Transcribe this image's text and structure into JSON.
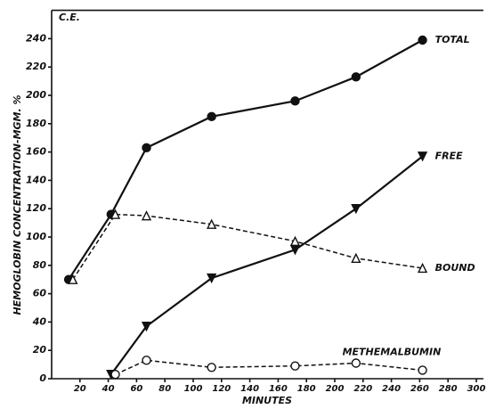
{
  "chart_data": {
    "type": "line",
    "annotation": "C.E.",
    "y_label": "HEMOGLOBIN CONCENTRATION-MGM. %",
    "x_label": "MINUTES",
    "xlim": [
      0,
      305
    ],
    "ylim": [
      0,
      260
    ],
    "xticks": [
      20,
      40,
      60,
      80,
      100,
      120,
      140,
      160,
      180,
      200,
      220,
      240,
      260,
      280,
      300
    ],
    "yticks": [
      0,
      20,
      40,
      60,
      80,
      100,
      120,
      140,
      160,
      180,
      200,
      220,
      240
    ],
    "series": [
      {
        "name": "TOTAL",
        "color": "#111111",
        "marker": "circle-filled",
        "dashed": false,
        "x": [
          12,
          42,
          67,
          113,
          172,
          215,
          262
        ],
        "values": [
          70,
          116,
          163,
          185,
          196,
          213,
          239
        ]
      },
      {
        "name": "FREE",
        "color": "#111111",
        "marker": "triangle-down-filled",
        "dashed": false,
        "x": [
          42,
          67,
          113,
          172,
          215,
          262
        ],
        "values": [
          3,
          37,
          71,
          91,
          120,
          157
        ]
      },
      {
        "name": "BOUND",
        "color": "#111111",
        "marker": "triangle-open",
        "dashed": true,
        "x": [
          15,
          45,
          67,
          113,
          172,
          215,
          262
        ],
        "values": [
          70,
          116,
          115,
          109,
          97,
          85,
          78
        ]
      },
      {
        "name": "METHEMALBUMIN",
        "color": "#111111",
        "marker": "circle-open",
        "dashed": true,
        "x": [
          45,
          67,
          113,
          172,
          215,
          262
        ],
        "values": [
          3,
          13,
          8,
          9,
          11,
          6
        ]
      }
    ]
  }
}
